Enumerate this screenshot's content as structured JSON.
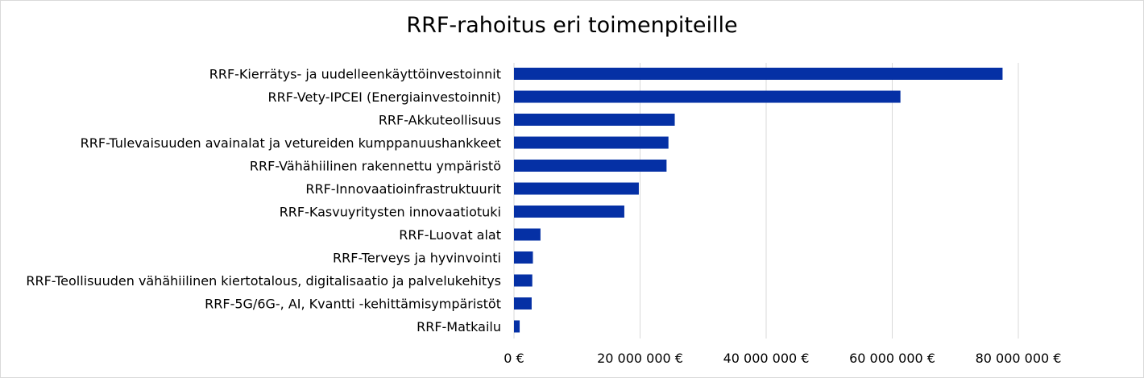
{
  "chart_data": {
    "type": "bar",
    "orientation": "horizontal",
    "title": "RRF-rahoitus eri toimenpiteille",
    "xlabel": "",
    "ylabel": "",
    "categories": [
      "RRF-Kierrätys- ja uudelleenkäyttöinvestoinnit",
      "RRF-Vety-IPCEI (Energiainvestoinnit)",
      "RRF-Akkuteollisuus",
      "RRF-Tulevaisuuden avainalat ja vetureiden kumppanuushankkeet",
      "RRF-Vähähiilinen rakennettu ympäristö",
      "RRF-Innovaatioinfrastruktuurit",
      "RRF-Kasvuyritysten innovaatiotuki",
      "RRF-Luovat alat",
      "RRF-Terveys ja hyvinvointi",
      "RRF-Teollisuuden vähähiilinen kiertotalous, digitalisaatio ja palvelukehitys",
      "RRF-5G/6G-, AI, Kvantti -kehittämisympäristöt",
      "RRF-Matkailu"
    ],
    "values": [
      77500000,
      61300000,
      25500000,
      24500000,
      24200000,
      19800000,
      17500000,
      4200000,
      3000000,
      2900000,
      2800000,
      900000
    ],
    "xlim": [
      0,
      90000000
    ],
    "xticks": [
      0,
      20000000,
      40000000,
      60000000,
      80000000
    ],
    "xtick_labels": [
      "0 €",
      "20 000 000 €",
      "40 000 000 €",
      "60 000 000 €",
      "80 000 000 €"
    ],
    "grid": "vertical",
    "legend": "none",
    "bar_color": "#0530a5",
    "grid_color": "#d9d9d9"
  }
}
